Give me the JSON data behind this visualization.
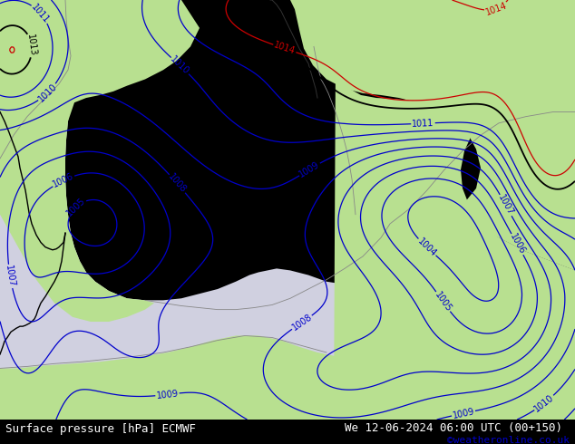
{
  "title_left": "Surface pressure [hPa] ECMWF",
  "title_right": "We 12-06-2024 06:00 UTC (00+150)",
  "credit": "©weatheronline.co.uk",
  "bg_color": "#b8e090",
  "sea_color": "#d0d0e0",
  "contour_color_blue": "#0000cc",
  "contour_color_black": "#000000",
  "contour_color_red": "#cc0000",
  "label_fontsize": 7,
  "footer_fontsize": 9,
  "credit_fontsize": 8,
  "credit_color": "#0000cc",
  "blue_levels": [
    1004,
    1005,
    1006,
    1007,
    1008,
    1009,
    1010,
    1011
  ],
  "black_levels": [
    1013
  ],
  "red_levels": [
    1014
  ],
  "coast_color": "#888888",
  "border_color": "#666666"
}
